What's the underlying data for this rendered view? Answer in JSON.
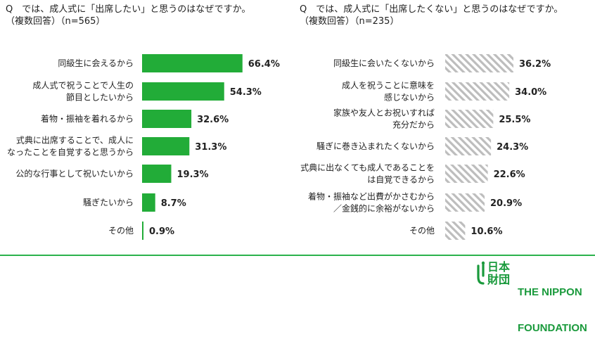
{
  "left_question": {
    "title": "Q　では、成人式に「出席したい」と思うのはなぜですか。",
    "subtitle": "（複数回答）（n=565）"
  },
  "right_question": {
    "title": "Q　では、成人式に「出席したくない」と思うのはなぜですか。",
    "subtitle": "（複数回答）（n=235）"
  },
  "chart_data": [
    {
      "type": "bar",
      "orientation": "horizontal",
      "categories": [
        [
          "同級生に会えるから"
        ],
        [
          "成人式で祝うことで人生の",
          "節目としたいから"
        ],
        [
          "着物・振袖を着れるから"
        ],
        [
          "式典に出席することで、成人に",
          "なったことを自覚すると思うから"
        ],
        [
          "公的な行事として祝いたいから"
        ],
        [
          "騒ぎたいから"
        ],
        [
          "その他"
        ]
      ],
      "values": [
        66.4,
        54.3,
        32.6,
        31.3,
        19.3,
        8.7,
        0.9
      ],
      "value_labels": [
        "66.4%",
        "54.3%",
        "32.6%",
        "31.3%",
        "19.3%",
        "8.7%",
        "0.9%"
      ],
      "color": "#22ac38",
      "fill": "solid"
    },
    {
      "type": "bar",
      "orientation": "horizontal",
      "categories": [
        [
          "同級生に会いたくないから"
        ],
        [
          "成人を祝うことに意味を",
          "感じないから"
        ],
        [
          "家族や友人とお祝いすれば",
          "充分だから"
        ],
        [
          "騒ぎに巻き込まれたくないから"
        ],
        [
          "式典に出なくても成人であることを",
          "は自覚できるから"
        ],
        [
          "着物・振袖など出費がかさむから",
          "／金銭的に余裕がないから"
        ],
        [
          "その他"
        ]
      ],
      "values": [
        36.2,
        34.0,
        25.5,
        24.3,
        22.6,
        20.9,
        10.6
      ],
      "value_labels": [
        "36.2%",
        "34.0%",
        "25.5%",
        "24.3%",
        "22.6%",
        "20.9%",
        "10.6%"
      ],
      "color": "#bfbfbf",
      "fill": "hatched"
    }
  ],
  "footer": {
    "logo_kanji_top": "日本",
    "logo_kanji_bottom": "財団",
    "logo_text_line1": "THE NIPPON",
    "logo_text_line2": "FOUNDATION",
    "brand_color": "#1a9a3c",
    "divider_color": "#2bb24c"
  }
}
